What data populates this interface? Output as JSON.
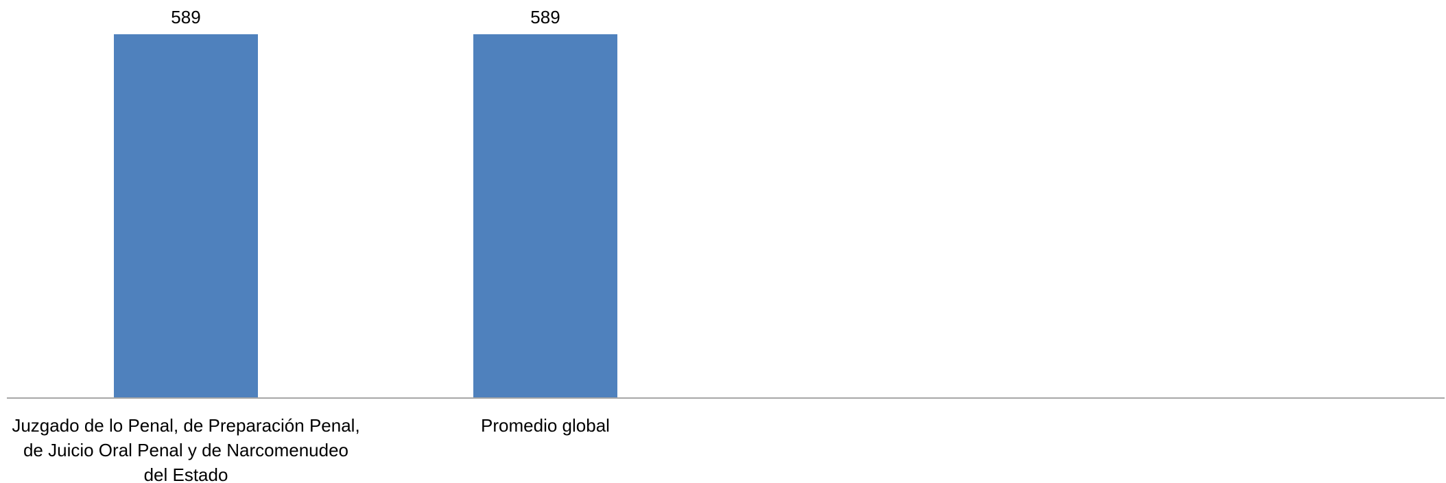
{
  "chart_data": {
    "type": "bar",
    "categories": [
      [
        "Juzgado de lo Penal, de Preparación Penal,",
        "de Juicio Oral Penal  y de Narcomenudeo",
        "del Estado"
      ],
      [
        "Promedio global"
      ]
    ],
    "values": [
      589,
      589
    ],
    "value_labels": [
      "589",
      "589"
    ],
    "bar_color": "#4F81BD",
    "axis_color": "#A6A6A6",
    "ylim": [
      0,
      589
    ],
    "grid": false,
    "legend": "none"
  }
}
